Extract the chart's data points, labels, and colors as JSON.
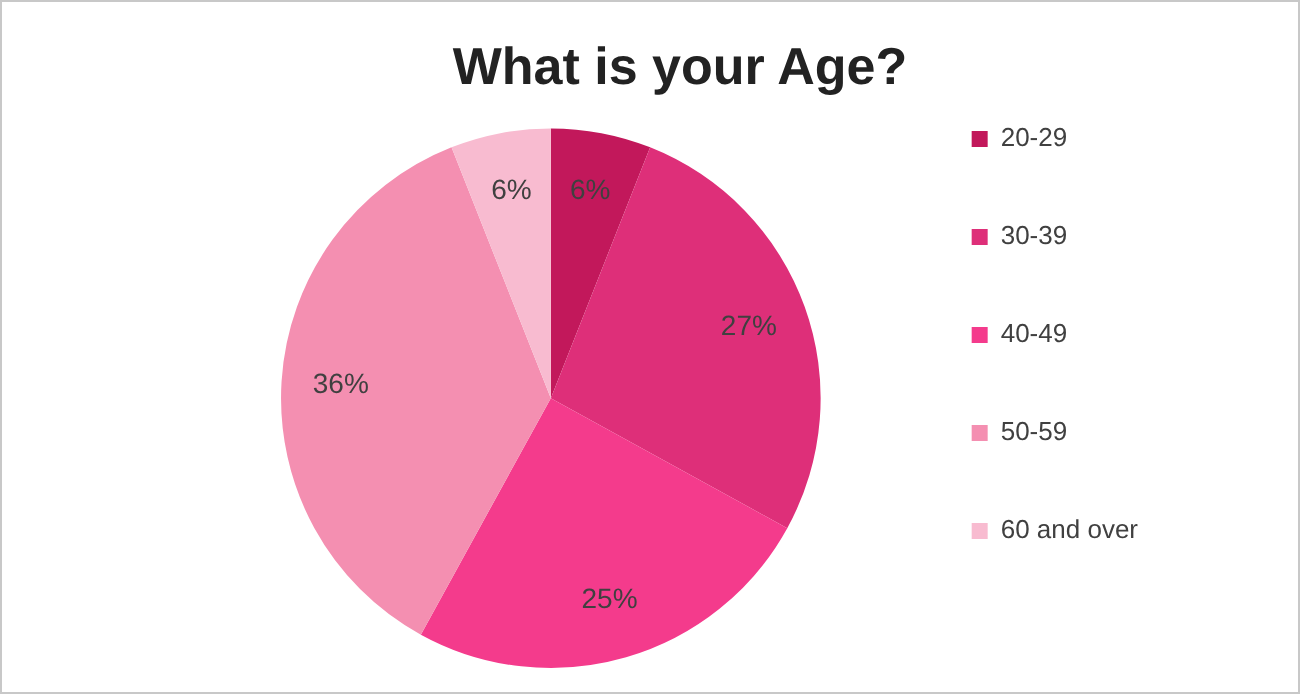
{
  "chart_data": {
    "type": "pie",
    "title": "What is your Age?",
    "categories": [
      "20-29",
      "30-39",
      "40-49",
      "50-59",
      "60 and over"
    ],
    "values": [
      6,
      27,
      25,
      36,
      6
    ],
    "value_labels": [
      "6%",
      "27%",
      "25%",
      "36%",
      "6%"
    ],
    "colors": [
      "#c2185b",
      "#de2f79",
      "#f43b8c",
      "#f48fb1",
      "#f8bbd0"
    ],
    "legend": "right"
  }
}
